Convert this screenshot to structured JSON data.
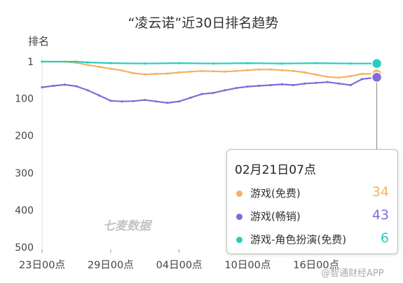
{
  "chart_data": {
    "type": "line",
    "title": "“凌云诺”近30日排名趋势",
    "ylabel": "排名",
    "y_inverted": true,
    "ylim": [
      1,
      500
    ],
    "y_ticks": [
      {
        "value": 1,
        "label": "1"
      },
      {
        "value": 100,
        "label": "100"
      },
      {
        "value": 200,
        "label": "200"
      },
      {
        "value": 300,
        "label": "300"
      },
      {
        "value": 400,
        "label": "400"
      },
      {
        "value": 500,
        "label": "500"
      }
    ],
    "x_range": [
      "01-23",
      "02-21"
    ],
    "x_ticks": [
      {
        "day": 0,
        "label": "23日00点"
      },
      {
        "day": 6,
        "label": "29日00点"
      },
      {
        "day": 12,
        "label": "04日00点"
      },
      {
        "day": 18,
        "label": "10日00点"
      },
      {
        "day": 24,
        "label": "16日00点"
      }
    ],
    "grid": "vertical-left-axis-only",
    "series": [
      {
        "name": "游戏(免费)",
        "color": "#f5b161",
        "points": [
          [
            0,
            1
          ],
          [
            2,
            1
          ],
          [
            3,
            4
          ],
          [
            4,
            10
          ],
          [
            5,
            15
          ],
          [
            6,
            20
          ],
          [
            7,
            25
          ],
          [
            8,
            32
          ],
          [
            9,
            35
          ],
          [
            10,
            34
          ],
          [
            11,
            33
          ],
          [
            12,
            30
          ],
          [
            13,
            28
          ],
          [
            14,
            26
          ],
          [
            15,
            27
          ],
          [
            16,
            28
          ],
          [
            17,
            26
          ],
          [
            18,
            24
          ],
          [
            19,
            22
          ],
          [
            20,
            22
          ],
          [
            21,
            24
          ],
          [
            22,
            26
          ],
          [
            23,
            30
          ],
          [
            24,
            36
          ],
          [
            25,
            42
          ],
          [
            26,
            44
          ],
          [
            27,
            40
          ],
          [
            28,
            34
          ],
          [
            29.3,
            34
          ]
        ]
      },
      {
        "name": "游戏(畅销)",
        "color": "#7d6dd8",
        "points": [
          [
            0,
            70
          ],
          [
            1,
            66
          ],
          [
            2,
            63
          ],
          [
            3,
            67
          ],
          [
            4,
            78
          ],
          [
            5,
            92
          ],
          [
            6,
            106
          ],
          [
            7,
            108
          ],
          [
            8,
            107
          ],
          [
            9,
            104
          ],
          [
            10,
            108
          ],
          [
            11,
            112
          ],
          [
            12,
            108
          ],
          [
            13,
            98
          ],
          [
            14,
            88
          ],
          [
            15,
            85
          ],
          [
            16,
            78
          ],
          [
            17,
            72
          ],
          [
            18,
            68
          ],
          [
            19,
            66
          ],
          [
            20,
            64
          ],
          [
            21,
            62
          ],
          [
            22,
            64
          ],
          [
            23,
            60
          ],
          [
            24,
            58
          ],
          [
            25,
            56
          ],
          [
            26,
            60
          ],
          [
            27,
            64
          ],
          [
            28,
            48
          ],
          [
            29.3,
            43
          ]
        ]
      },
      {
        "name": "游戏-角色扮演(免费)",
        "color": "#25cfc0",
        "points": [
          [
            0,
            1
          ],
          [
            3,
            1
          ],
          [
            4,
            3
          ],
          [
            6,
            5
          ],
          [
            9,
            6
          ],
          [
            12,
            5
          ],
          [
            15,
            6
          ],
          [
            18,
            5
          ],
          [
            21,
            6
          ],
          [
            24,
            5
          ],
          [
            27,
            6
          ],
          [
            29.3,
            6
          ]
        ]
      }
    ],
    "tooltip": {
      "title": "02月21日07点",
      "x": 29.3,
      "items": [
        {
          "label": "游戏(免费)",
          "value": "34",
          "color": "#f5b161"
        },
        {
          "label": "游戏(畅销)",
          "value": "43",
          "color": "#7d6dd8"
        },
        {
          "label": "游戏-角色扮演(免费)",
          "value": "6",
          "color": "#25cfc0"
        }
      ]
    },
    "watermark": "七麦数据",
    "source_watermark": "@智通财经APP"
  }
}
